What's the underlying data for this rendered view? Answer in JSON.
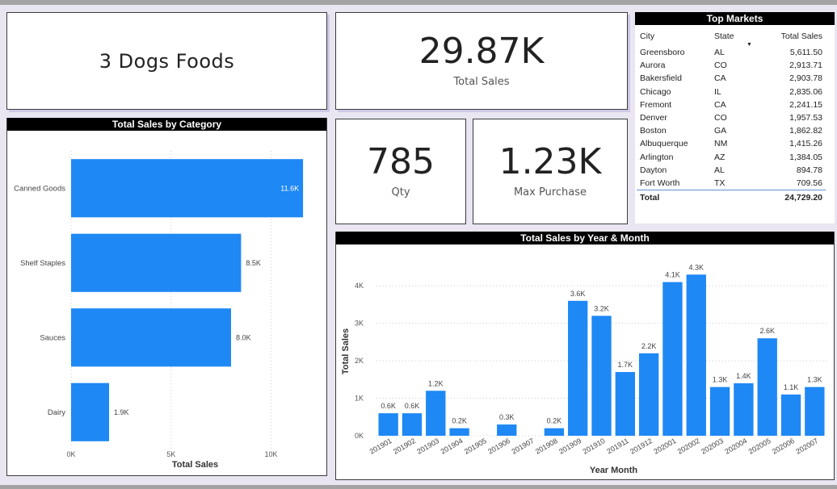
{
  "brand": {
    "title": "3 Dogs Foods"
  },
  "kpis": {
    "total_sales": {
      "value": "29.87K",
      "label": "Total Sales"
    },
    "qty": {
      "value": "785",
      "label": "Qty"
    },
    "max_purchase": {
      "value": "1.23K",
      "label": "Max Purchase"
    }
  },
  "top_markets": {
    "title": "Top Markets",
    "columns": [
      "City",
      "State",
      "Total Sales"
    ],
    "rows": [
      {
        "city": "Greensboro",
        "state": "AL",
        "sales": "5,611.50"
      },
      {
        "city": "Aurora",
        "state": "CO",
        "sales": "2,913.71"
      },
      {
        "city": "Bakersfield",
        "state": "CA",
        "sales": "2,903.78"
      },
      {
        "city": "Chicago",
        "state": "IL",
        "sales": "2,835.06"
      },
      {
        "city": "Fremont",
        "state": "CA",
        "sales": "2,241.15"
      },
      {
        "city": "Denver",
        "state": "CO",
        "sales": "1,957.53"
      },
      {
        "city": "Boston",
        "state": "GA",
        "sales": "1,862.82"
      },
      {
        "city": "Albuquerque",
        "state": "NM",
        "sales": "1,415.26"
      },
      {
        "city": "Arlington",
        "state": "AZ",
        "sales": "1,384.05"
      },
      {
        "city": "Dayton",
        "state": "AL",
        "sales": "894.78"
      },
      {
        "city": "Fort Worth",
        "state": "TX",
        "sales": "709.56"
      }
    ],
    "total": {
      "label": "Total",
      "value": "24,729.20"
    }
  },
  "colors": {
    "bar": "#1e88f5",
    "title_bg": "#000000",
    "grid": "#cccccc"
  },
  "chart_data": [
    {
      "type": "bar",
      "orientation": "horizontal",
      "title": "Total Sales by Category",
      "categories": [
        "Canned Goods",
        "Shelf Staples",
        "Sauces",
        "Dairy"
      ],
      "values": [
        11600,
        8500,
        8000,
        1900
      ],
      "data_labels": [
        "11.6K",
        "8.5K",
        "8.0K",
        "1.9K"
      ],
      "xlabel": "Total Sales",
      "ylabel": "",
      "xlim": [
        0,
        12000
      ],
      "ticks": [
        0,
        5000,
        10000
      ],
      "tick_labels": [
        "0K",
        "5K",
        "10K"
      ],
      "grid": true
    },
    {
      "type": "bar",
      "title": "Total Sales by Year & Month",
      "categories": [
        "201901",
        "201902",
        "201903",
        "201904",
        "201905",
        "201906",
        "201907",
        "201908",
        "201909",
        "201910",
        "201911",
        "201912",
        "202001",
        "202002",
        "202003",
        "202004",
        "202005",
        "202006",
        "202007"
      ],
      "values": [
        600,
        600,
        1200,
        200,
        0,
        300,
        0,
        200,
        3600,
        3200,
        1700,
        2200,
        4100,
        4300,
        1300,
        1400,
        2600,
        1100,
        1300
      ],
      "data_labels": [
        "0.6K",
        "0.6K",
        "1.2K",
        "0.2K",
        "",
        "0.3K",
        "",
        "0.2K",
        "3.6K",
        "3.2K",
        "1.7K",
        "2.2K",
        "4.1K",
        "4.3K",
        "1.3K",
        "1.4K",
        "2.6K",
        "1.1K",
        "1.3K"
      ],
      "xlabel": "Year Month",
      "ylabel": "Total Sales",
      "ylim": [
        0,
        4500
      ],
      "ticks": [
        0,
        1000,
        2000,
        3000,
        4000
      ],
      "tick_labels": [
        "0K",
        "1K",
        "2K",
        "3K",
        "4K"
      ],
      "grid": true
    }
  ]
}
